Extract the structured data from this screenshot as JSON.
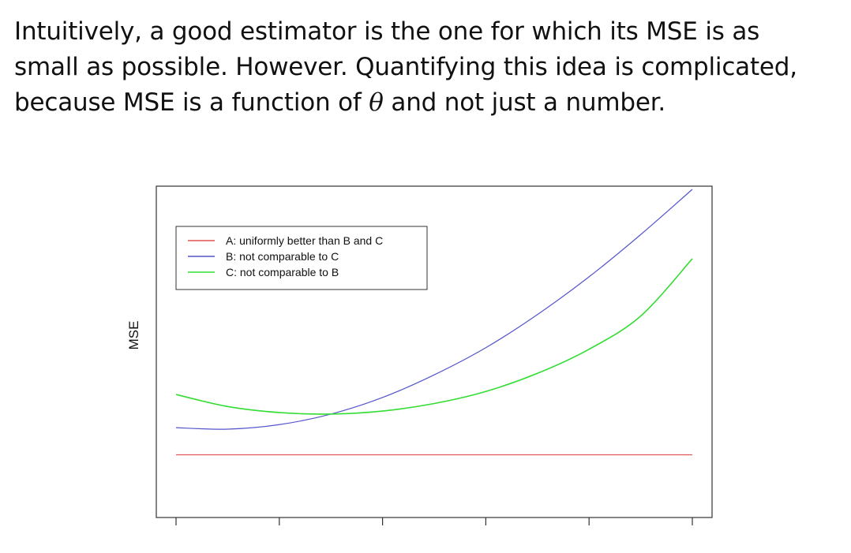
{
  "intro": {
    "line1": "Intuitively, a good estimator is the one for which its MSE is as",
    "line2": "small as possible. However. Quantifying this idea is complicated,",
    "line3_before": "because MSE is a function of ",
    "line3_symbol": "θ",
    "line3_after": " and not just a number."
  },
  "chart_data": {
    "type": "line",
    "ylabel": "MSE",
    "xlabel": "",
    "title": "",
    "x": [
      0,
      0.2,
      0.4,
      0.6,
      0.8,
      1.0
    ],
    "xlim": [
      0,
      1
    ],
    "ylim": [
      0,
      1
    ],
    "grid": false,
    "legend_position": "top-left",
    "xticks": [
      0,
      0.2,
      0.4,
      0.6,
      0.8,
      1.0
    ],
    "xtick_labels": [
      "",
      "",
      "",
      "",
      "",
      ""
    ],
    "series": [
      {
        "name": "A: uniformly better than B and C",
        "color": "#e05555",
        "x": [
          0,
          1
        ],
        "y": [
          0.2,
          0.2
        ]
      },
      {
        "name": "B: not comparable to C",
        "color": "#5555cc",
        "x": [
          0,
          0.1,
          0.2,
          0.3,
          0.4,
          0.5,
          0.6,
          0.7,
          0.8,
          0.9,
          1.0
        ],
        "y": [
          0.29,
          0.285,
          0.3,
          0.335,
          0.39,
          0.465,
          0.555,
          0.665,
          0.79,
          0.93,
          1.08
        ]
      },
      {
        "name": "C: not comparable to B",
        "color": "#33dd33",
        "x": [
          0,
          0.1,
          0.2,
          0.3,
          0.4,
          0.5,
          0.6,
          0.7,
          0.8,
          0.9,
          1.0
        ],
        "y": [
          0.4,
          0.36,
          0.34,
          0.335,
          0.345,
          0.37,
          0.41,
          0.47,
          0.55,
          0.66,
          0.85
        ]
      }
    ]
  }
}
